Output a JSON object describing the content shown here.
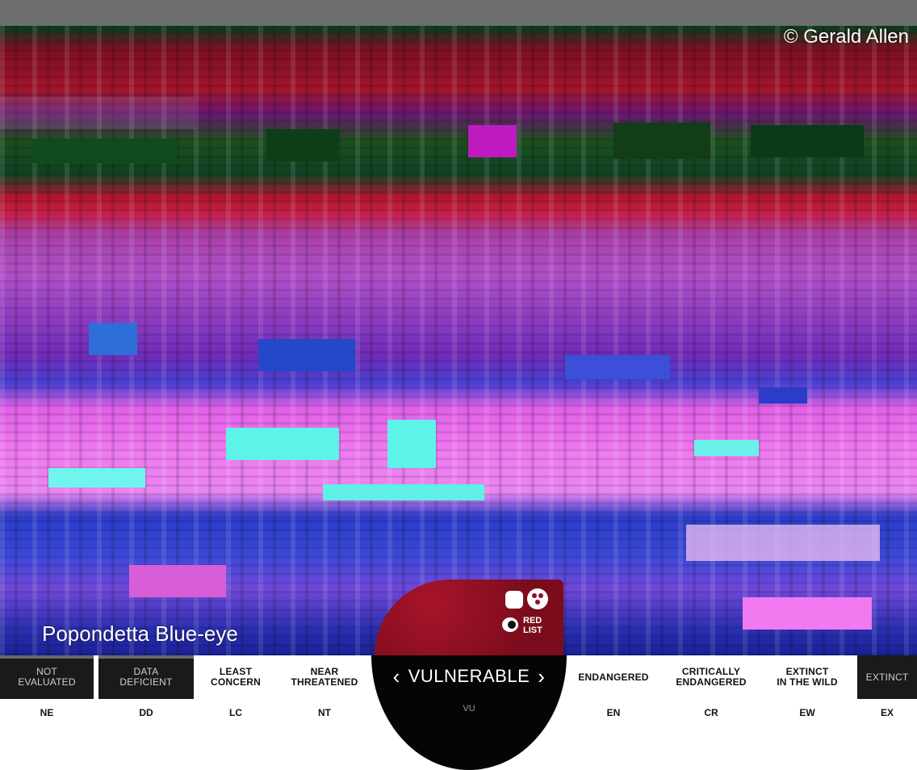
{
  "photo": {
    "copyright": "© Gerald Allen",
    "species_name": "Popondetta Blue-eye"
  },
  "red_list": {
    "logo_text": "RED LIST",
    "prev_icon": "chevron-left-icon",
    "next_icon": "chevron-right-icon",
    "selected": {
      "label": "VULNERABLE",
      "code": "VU"
    },
    "categories": [
      {
        "line1": "NOT",
        "line2": "EVALUATED",
        "code": "NE"
      },
      {
        "line1": "DATA",
        "line2": "DEFICIENT",
        "code": "DD"
      },
      {
        "line1": "LEAST",
        "line2": "CONCERN",
        "code": "LC"
      },
      {
        "line1": "NEAR",
        "line2": "THREATENED",
        "code": "NT"
      },
      {
        "line1": "ENDANGERED",
        "line2": "",
        "code": "EN"
      },
      {
        "line1": "CRITICALLY",
        "line2": "ENDANGERED",
        "code": "CR"
      },
      {
        "line1": "EXTINCT",
        "line2": "IN THE WILD",
        "code": "EW"
      },
      {
        "line1": "EXTINCT",
        "line2": "",
        "code": "EX"
      }
    ]
  },
  "colors": {
    "badge_red": "#8f1024",
    "bar_dark": "#1a1a1a"
  }
}
